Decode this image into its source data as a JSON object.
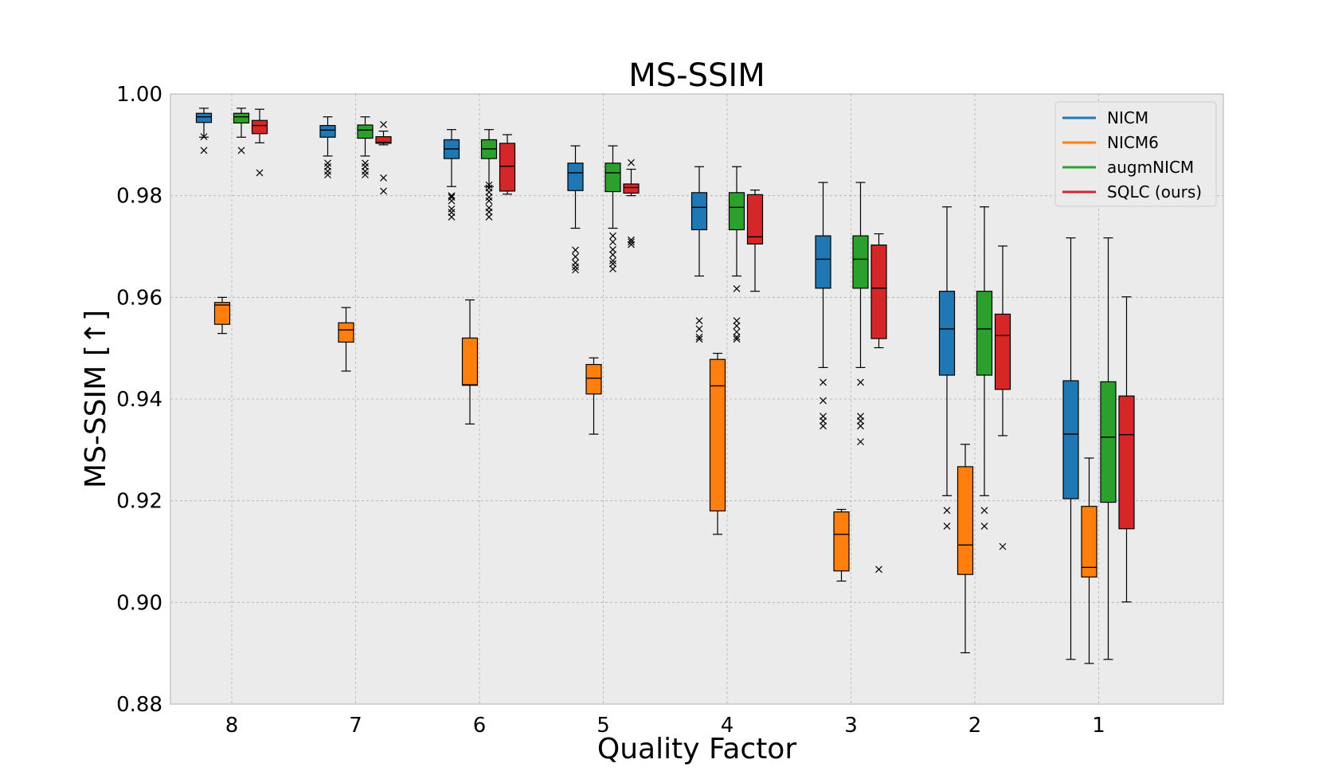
{
  "chart_data": {
    "type": "box",
    "title": "MS-SSIM",
    "xlabel": "Quality Factor",
    "ylabel": "MS-SSIM [↑]",
    "ylim": [
      0.88,
      1.0
    ],
    "yticks": [
      "0.88",
      "0.90",
      "0.92",
      "0.94",
      "0.96",
      "0.98",
      "1.00"
    ],
    "categories": [
      "8",
      "7",
      "6",
      "5",
      "4",
      "3",
      "2",
      "1"
    ],
    "grid": true,
    "legend_position": "upper right",
    "outlier_marker": "x",
    "series": [
      {
        "name": "NICM",
        "color": "#1f77b4",
        "boxes": [
          {
            "whislo": 0.9915,
            "q1": 0.9944,
            "med": 0.9955,
            "q3": 0.9962,
            "whishi": 0.9972,
            "fliers": [
              0.9916,
              0.9889
            ]
          },
          {
            "whislo": 0.9878,
            "q1": 0.9915,
            "med": 0.9929,
            "q3": 0.9938,
            "whishi": 0.9955,
            "fliers": [
              0.9864,
              0.9857,
              0.9848,
              0.9841
            ]
          },
          {
            "whislo": 0.9818,
            "q1": 0.9873,
            "med": 0.9892,
            "q3": 0.991,
            "whishi": 0.993,
            "fliers": [
              0.98,
              0.9797,
              0.979,
              0.9774,
              0.9767,
              0.9758
            ]
          },
          {
            "whislo": 0.9736,
            "q1": 0.981,
            "med": 0.9845,
            "q3": 0.9864,
            "whishi": 0.9898,
            "fliers": [
              0.9693,
              0.968,
              0.9668,
              0.966,
              0.9654
            ]
          },
          {
            "whislo": 0.9642,
            "q1": 0.9733,
            "med": 0.9777,
            "q3": 0.9806,
            "whishi": 0.9857,
            "fliers": [
              0.9554,
              0.9538,
              0.9522,
              0.9518
            ]
          },
          {
            "whislo": 0.9462,
            "q1": 0.9618,
            "med": 0.9675,
            "q3": 0.9721,
            "whishi": 0.9826,
            "fliers": [
              0.9433,
              0.9397,
              0.9366,
              0.9357,
              0.9347
            ]
          },
          {
            "whislo": 0.921,
            "q1": 0.9447,
            "med": 0.9538,
            "q3": 0.9612,
            "whishi": 0.9778,
            "fliers": [
              0.9181,
              0.915
            ]
          },
          {
            "whislo": 0.8888,
            "q1": 0.9204,
            "med": 0.9331,
            "q3": 0.9436,
            "whishi": 0.9717,
            "fliers": []
          }
        ]
      },
      {
        "name": "NICM6",
        "color": "#ff7f0e",
        "boxes": [
          {
            "whislo": 0.9529,
            "q1": 0.9547,
            "med": 0.9585,
            "q3": 0.959,
            "whishi": 0.96,
            "fliers": []
          },
          {
            "whislo": 0.9455,
            "q1": 0.9512,
            "med": 0.9536,
            "q3": 0.955,
            "whishi": 0.958,
            "fliers": []
          },
          {
            "whislo": 0.9351,
            "q1": 0.9427,
            "med": 0.9428,
            "q3": 0.952,
            "whishi": 0.9595,
            "fliers": []
          },
          {
            "whislo": 0.9331,
            "q1": 0.941,
            "med": 0.9441,
            "q3": 0.9468,
            "whishi": 0.9481,
            "fliers": []
          },
          {
            "whislo": 0.9134,
            "q1": 0.918,
            "med": 0.9426,
            "q3": 0.9478,
            "whishi": 0.949,
            "fliers": []
          },
          {
            "whislo": 0.9042,
            "q1": 0.9062,
            "med": 0.9134,
            "q3": 0.9178,
            "whishi": 0.9183,
            "fliers": []
          },
          {
            "whislo": 0.8901,
            "q1": 0.9055,
            "med": 0.9113,
            "q3": 0.9267,
            "whishi": 0.9311,
            "fliers": []
          },
          {
            "whislo": 0.888,
            "q1": 0.905,
            "med": 0.9069,
            "q3": 0.9189,
            "whishi": 0.9284,
            "fliers": []
          }
        ]
      },
      {
        "name": "augmNICM",
        "color": "#2ca02c",
        "boxes": [
          {
            "whislo": 0.9915,
            "q1": 0.9943,
            "med": 0.9955,
            "q3": 0.9962,
            "whishi": 0.9972,
            "fliers": [
              0.9889
            ]
          },
          {
            "whislo": 0.9878,
            "q1": 0.9913,
            "med": 0.9929,
            "q3": 0.9939,
            "whishi": 0.9955,
            "fliers": [
              0.9864,
              0.9857,
              0.9848,
              0.9841
            ]
          },
          {
            "whislo": 0.9818,
            "q1": 0.9873,
            "med": 0.9892,
            "q3": 0.991,
            "whishi": 0.993,
            "fliers": [
              0.9821,
              0.9815,
              0.9807,
              0.9797,
              0.979,
              0.9776,
              0.9768,
              0.9758
            ]
          },
          {
            "whislo": 0.9736,
            "q1": 0.9808,
            "med": 0.9845,
            "q3": 0.9864,
            "whishi": 0.9898,
            "fliers": [
              0.9721,
              0.9709,
              0.9694,
              0.9684,
              0.9672,
              0.9666,
              0.9656
            ]
          },
          {
            "whislo": 0.9642,
            "q1": 0.9733,
            "med": 0.9777,
            "q3": 0.9806,
            "whishi": 0.9857,
            "fliers": [
              0.9617,
              0.9554,
              0.9544,
              0.9532,
              0.9522,
              0.9518
            ]
          },
          {
            "whislo": 0.9462,
            "q1": 0.9618,
            "med": 0.9675,
            "q3": 0.9721,
            "whishi": 0.9826,
            "fliers": [
              0.9433,
              0.9366,
              0.9357,
              0.9347,
              0.9316
            ]
          },
          {
            "whislo": 0.921,
            "q1": 0.9447,
            "med": 0.9538,
            "q3": 0.9612,
            "whishi": 0.9778,
            "fliers": [
              0.9181,
              0.915
            ]
          },
          {
            "whislo": 0.8888,
            "q1": 0.9197,
            "med": 0.9325,
            "q3": 0.9434,
            "whishi": 0.9717,
            "fliers": []
          }
        ]
      },
      {
        "name": "SQLC (ours)",
        "color": "#d62728",
        "boxes": [
          {
            "whislo": 0.9904,
            "q1": 0.9922,
            "med": 0.9938,
            "q3": 0.9948,
            "whishi": 0.997,
            "fliers": [
              0.9845
            ]
          },
          {
            "whislo": 0.99,
            "q1": 0.9903,
            "med": 0.9905,
            "q3": 0.9916,
            "whishi": 0.9927,
            "fliers": [
              0.994,
              0.9835,
              0.9809
            ]
          },
          {
            "whislo": 0.9803,
            "q1": 0.9809,
            "med": 0.9858,
            "q3": 0.9903,
            "whishi": 0.992,
            "fliers": []
          },
          {
            "whislo": 0.98,
            "q1": 0.9805,
            "med": 0.9816,
            "q3": 0.9823,
            "whishi": 0.9852,
            "fliers": [
              0.9865,
              0.9713,
              0.9709,
              0.9704
            ]
          },
          {
            "whislo": 0.9612,
            "q1": 0.9705,
            "med": 0.9719,
            "q3": 0.9802,
            "whishi": 0.9811,
            "fliers": []
          },
          {
            "whislo": 0.9501,
            "q1": 0.9519,
            "med": 0.9618,
            "q3": 0.9703,
            "whishi": 0.9725,
            "fliers": [
              0.9065
            ]
          },
          {
            "whislo": 0.9328,
            "q1": 0.9419,
            "med": 0.9525,
            "q3": 0.9567,
            "whishi": 0.9701,
            "fliers": [
              0.911
            ]
          },
          {
            "whislo": 0.9001,
            "q1": 0.9145,
            "med": 0.933,
            "q3": 0.9406,
            "whishi": 0.9601,
            "fliers": []
          }
        ]
      }
    ]
  }
}
